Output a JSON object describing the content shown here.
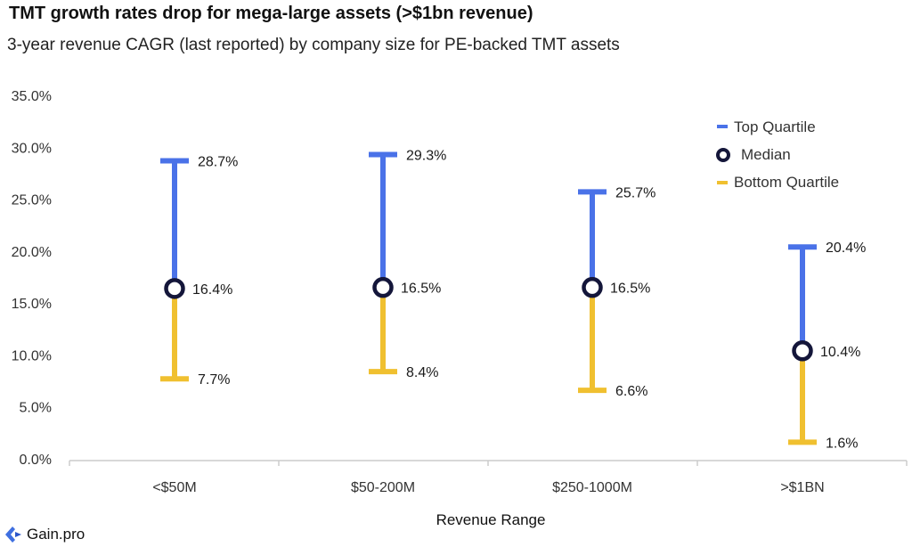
{
  "header": {
    "title": "TMT growth rates drop for mega-large assets (>$1bn revenue)",
    "subtitle": "3-year revenue CAGR (last reported) by company size for PE-backed TMT assets"
  },
  "legend": {
    "top_label": "Top Quartile",
    "median_label": "Median",
    "bottom_label": "Bottom Quartile"
  },
  "colors": {
    "top": "#4a72e8",
    "bottom": "#f0c030",
    "median_ring": "#14163a",
    "axis": "#cccccc"
  },
  "chart_data": {
    "type": "range",
    "xlabel": "Revenue Range",
    "ylabel": "",
    "ylim": [
      0,
      35
    ],
    "yticks": [
      "0.0%",
      "5.0%",
      "10.0%",
      "15.0%",
      "20.0%",
      "25.0%",
      "30.0%",
      "35.0%"
    ],
    "categories": [
      "<$50M",
      "$50-200M",
      "$250-1000M",
      ">$1BN"
    ],
    "series": [
      {
        "name": "Top Quartile",
        "values": [
          28.7,
          29.3,
          25.7,
          20.4
        ],
        "labels": [
          "28.7%",
          "29.3%",
          "25.7%",
          "20.4%"
        ]
      },
      {
        "name": "Median",
        "values": [
          16.4,
          16.5,
          16.5,
          10.4
        ],
        "labels": [
          "16.4%",
          "16.5%",
          "16.5%",
          "10.4%"
        ]
      },
      {
        "name": "Bottom Quartile",
        "values": [
          7.7,
          8.4,
          6.6,
          1.6
        ],
        "labels": [
          "7.7%",
          "8.4%",
          "6.6%",
          "1.6%"
        ]
      }
    ],
    "legend_position": "top-right",
    "grid": false
  },
  "footer": {
    "logo_text": "Gain.pro"
  }
}
